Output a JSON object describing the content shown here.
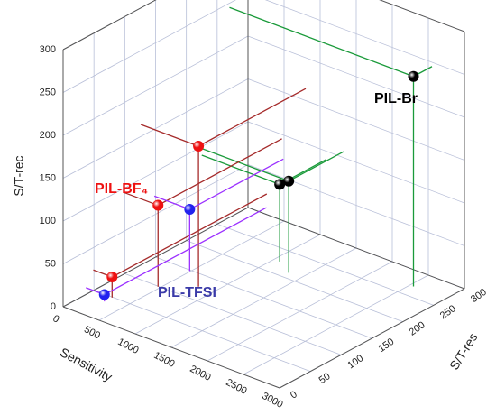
{
  "chart_data": {
    "type": "scatter3d",
    "xlabel": "Sensitivity",
    "ylabel": "S/T-res",
    "zlabel": "S/T-rec",
    "xlim": [
      0,
      3000
    ],
    "xticks": [
      0,
      500,
      1000,
      1500,
      2000,
      2500,
      3000
    ],
    "ylim": [
      0,
      300
    ],
    "yticks": [
      0,
      50,
      100,
      150,
      200,
      250,
      300
    ],
    "zlim": [
      0,
      300
    ],
    "zticks": [
      0,
      50,
      100,
      150,
      200,
      250,
      300
    ],
    "grid": true,
    "series": [
      {
        "name": "PIL-Br",
        "color": "#000000",
        "line_color": "#1a9a3a",
        "x": [
          2550,
          1080,
          1325
        ],
        "y": [
          270,
          225,
          211
        ],
        "values": [
          245,
          90,
          107
        ]
      },
      {
        "name": "PIL-BF₄",
        "color": "#ee1111",
        "line_color": "#a52a2a",
        "x": [
          800,
          470,
          260
        ],
        "y": [
          126,
          99,
          49
        ],
        "values": [
          164,
          95,
          24
        ]
      },
      {
        "name": "PIL-TFSI",
        "color": "#2222ee",
        "line_color": "#9b30ff",
        "x": [
          490,
          256
        ],
        "y": [
          148,
          37
        ],
        "values": [
          72,
          8
        ]
      }
    ]
  }
}
